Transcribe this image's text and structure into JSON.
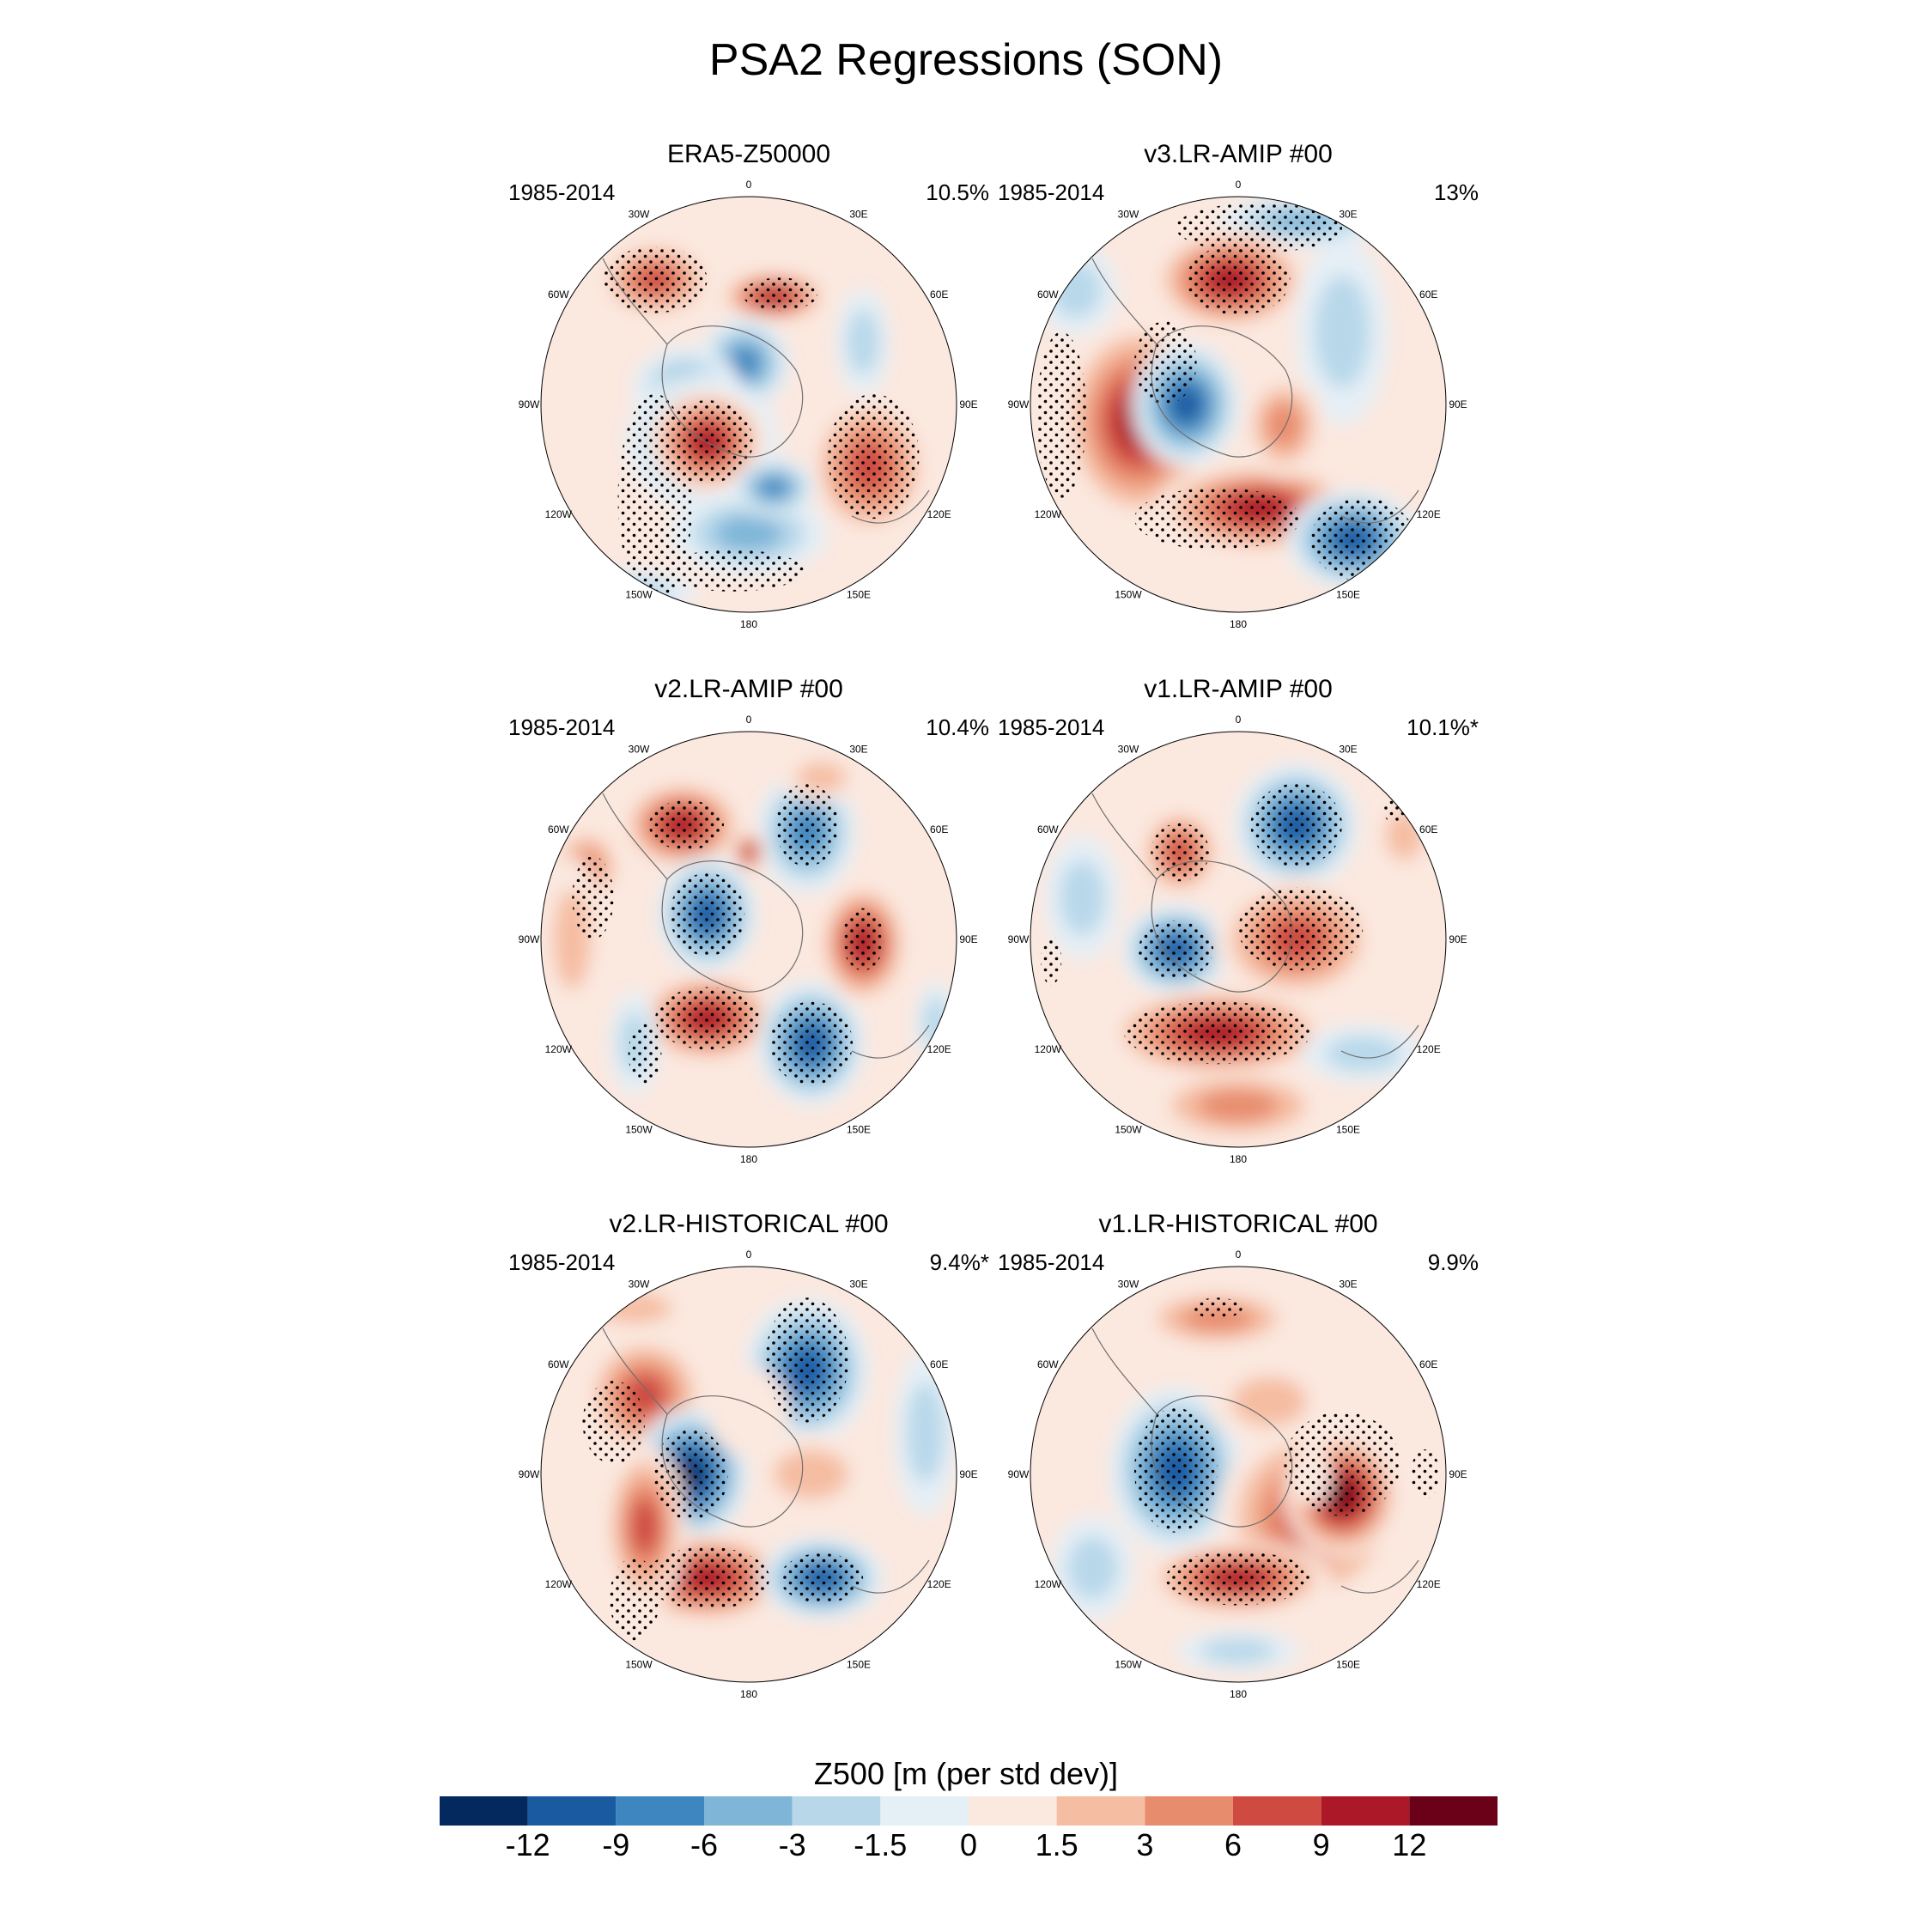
{
  "title": "PSA2 Regressions (SON)",
  "panels": [
    {
      "name": "ERA5-Z50000",
      "years": "1985-2014",
      "pct": "10.5%",
      "blobs": [
        [
          -0.45,
          -0.6,
          0.28,
          0.19,
          9
        ],
        [
          0.12,
          -0.52,
          0.27,
          0.13,
          12
        ],
        [
          -0.02,
          -0.2,
          0.22,
          0.22,
          -9
        ],
        [
          -0.3,
          -0.08,
          0.26,
          0.2,
          -6
        ],
        [
          -0.22,
          0.18,
          0.37,
          0.33,
          -9
        ],
        [
          -0.2,
          0.18,
          0.28,
          0.25,
          14
        ],
        [
          0.0,
          0.62,
          0.38,
          0.2,
          -7
        ],
        [
          0.55,
          -0.3,
          0.13,
          0.26,
          -5
        ],
        [
          0.58,
          0.3,
          0.3,
          0.35,
          10
        ],
        [
          0.12,
          0.4,
          0.2,
          0.14,
          -10
        ],
        [
          -0.55,
          0.9,
          0.3,
          0.1,
          -4
        ]
      ],
      "stipple": [
        [
          -0.45,
          -0.6,
          0.25,
          0.16
        ],
        [
          -0.45,
          0.45,
          0.18,
          0.5
        ],
        [
          -0.2,
          0.18,
          0.22,
          0.2
        ],
        [
          0.15,
          -0.53,
          0.18,
          0.08
        ],
        [
          0.6,
          0.25,
          0.22,
          0.3
        ],
        [
          -0.08,
          0.8,
          0.35,
          0.1
        ]
      ]
    },
    {
      "name": "v3.LR-AMIP  #00",
      "years": "1985-2014",
      "pct": "13%",
      "blobs": [
        [
          0.3,
          -0.88,
          0.4,
          0.12,
          -6
        ],
        [
          -0.78,
          -0.55,
          0.2,
          0.22,
          -4
        ],
        [
          -0.04,
          -0.6,
          0.38,
          0.25,
          13
        ],
        [
          0.5,
          -0.35,
          0.22,
          0.45,
          -5
        ],
        [
          -0.48,
          0.08,
          0.38,
          0.5,
          12
        ],
        [
          -0.25,
          0.0,
          0.26,
          0.3,
          -14
        ],
        [
          0.1,
          0.5,
          0.5,
          0.22,
          12
        ],
        [
          0.22,
          0.1,
          0.2,
          0.25,
          6
        ],
        [
          0.55,
          0.65,
          0.32,
          0.24,
          -13
        ],
        [
          0.92,
          0.1,
          0.1,
          0.3,
          0
        ]
      ],
      "stipple": [
        [
          0.1,
          -0.85,
          0.4,
          0.12
        ],
        [
          -0.85,
          0.05,
          0.12,
          0.4
        ],
        [
          -0.35,
          -0.2,
          0.15,
          0.2
        ],
        [
          0.0,
          -0.6,
          0.25,
          0.17
        ],
        [
          -0.1,
          0.55,
          0.4,
          0.15
        ],
        [
          0.6,
          0.65,
          0.25,
          0.2
        ]
      ]
    },
    {
      "name": "v2.LR-AMIP  #00",
      "years": "1985-2014",
      "pct": "10.4%",
      "blobs": [
        [
          -0.32,
          -0.55,
          0.3,
          0.22,
          12
        ],
        [
          0.28,
          -0.52,
          0.24,
          0.3,
          -9
        ],
        [
          -0.78,
          -0.35,
          0.18,
          0.2,
          6
        ],
        [
          -0.85,
          0.0,
          0.15,
          0.4,
          4
        ],
        [
          -0.2,
          -0.12,
          0.24,
          0.28,
          -14
        ],
        [
          -0.2,
          0.38,
          0.34,
          0.22,
          14
        ],
        [
          0.3,
          0.5,
          0.26,
          0.3,
          -13
        ],
        [
          0.55,
          0.02,
          0.22,
          0.3,
          13
        ],
        [
          0.0,
          -0.42,
          0.08,
          0.1,
          12
        ],
        [
          -0.55,
          0.5,
          0.12,
          0.25,
          -5
        ],
        [
          0.9,
          0.4,
          0.1,
          0.2,
          -3
        ],
        [
          0.35,
          -0.78,
          0.2,
          0.12,
          3
        ]
      ],
      "stipple": [
        [
          -0.75,
          -0.2,
          0.1,
          0.2
        ],
        [
          -0.3,
          -0.55,
          0.18,
          0.12
        ],
        [
          -0.2,
          -0.12,
          0.18,
          0.2
        ],
        [
          0.28,
          -0.55,
          0.15,
          0.2
        ],
        [
          -0.2,
          0.38,
          0.25,
          0.15
        ],
        [
          0.3,
          0.5,
          0.2,
          0.2
        ],
        [
          0.55,
          0.0,
          0.1,
          0.15
        ],
        [
          -0.5,
          0.55,
          0.08,
          0.15
        ]
      ]
    },
    {
      "name": "v1.LR-AMIP  #00",
      "years": "1985-2014",
      "pct": "10.1%*",
      "blobs": [
        [
          -0.28,
          -0.42,
          0.2,
          0.22,
          11
        ],
        [
          0.28,
          -0.55,
          0.3,
          0.3,
          -13
        ],
        [
          -0.3,
          0.05,
          0.26,
          0.22,
          -12
        ],
        [
          0.28,
          0.0,
          0.4,
          0.3,
          11
        ],
        [
          -0.1,
          0.45,
          0.55,
          0.22,
          13
        ],
        [
          0.6,
          0.55,
          0.3,
          0.14,
          -5
        ],
        [
          -0.75,
          -0.2,
          0.18,
          0.3,
          -3
        ],
        [
          0.0,
          0.8,
          0.45,
          0.18,
          6
        ],
        [
          0.8,
          -0.5,
          0.15,
          0.2,
          5
        ]
      ],
      "stipple": [
        [
          -0.28,
          -0.42,
          0.14,
          0.14
        ],
        [
          0.28,
          -0.55,
          0.22,
          0.2
        ],
        [
          -0.3,
          0.05,
          0.18,
          0.14
        ],
        [
          0.3,
          -0.05,
          0.3,
          0.2
        ],
        [
          -0.1,
          0.45,
          0.45,
          0.15
        ],
        [
          -0.9,
          0.1,
          0.05,
          0.12
        ],
        [
          0.75,
          -0.62,
          0.05,
          0.06
        ]
      ]
    },
    {
      "name": "v2.LR-HISTORICAL  #00",
      "years": "1985-2014",
      "pct": "9.4%*",
      "blobs": [
        [
          0.28,
          -0.5,
          0.3,
          0.35,
          -12
        ],
        [
          -0.5,
          -0.38,
          0.3,
          0.3,
          10
        ],
        [
          -0.28,
          0.0,
          0.28,
          0.32,
          -15
        ],
        [
          -0.2,
          0.5,
          0.4,
          0.22,
          14
        ],
        [
          0.35,
          0.5,
          0.3,
          0.2,
          -12
        ],
        [
          -0.5,
          0.25,
          0.2,
          0.4,
          9
        ],
        [
          0.0,
          -0.3,
          0.2,
          0.22,
          2
        ],
        [
          0.3,
          0.0,
          0.3,
          0.2,
          3
        ],
        [
          0.85,
          -0.2,
          0.15,
          0.4,
          -3
        ],
        [
          -0.55,
          -0.8,
          0.3,
          0.12,
          4
        ]
      ],
      "stipple": [
        [
          0.28,
          -0.55,
          0.2,
          0.3
        ],
        [
          -0.65,
          -0.25,
          0.15,
          0.2
        ],
        [
          -0.28,
          0.0,
          0.18,
          0.22
        ],
        [
          -0.2,
          0.5,
          0.3,
          0.15
        ],
        [
          0.35,
          0.5,
          0.2,
          0.12
        ],
        [
          -0.55,
          0.6,
          0.12,
          0.2
        ]
      ]
    },
    {
      "name": "v1.LR-HISTORICAL  #00",
      "years": "1985-2014",
      "pct": "9.9%",
      "blobs": [
        [
          -0.3,
          -0.02,
          0.32,
          0.4,
          -14
        ],
        [
          0.35,
          0.2,
          0.45,
          0.45,
          10
        ],
        [
          0.5,
          0.1,
          0.28,
          0.3,
          15
        ],
        [
          0.0,
          0.5,
          0.45,
          0.18,
          13
        ],
        [
          -0.1,
          -0.75,
          0.4,
          0.15,
          8
        ],
        [
          0.15,
          -0.35,
          0.3,
          0.2,
          5
        ],
        [
          -0.7,
          0.45,
          0.2,
          0.25,
          -3
        ],
        [
          0.0,
          0.85,
          0.3,
          0.1,
          -3
        ],
        [
          0.85,
          -0.5,
          0.12,
          0.2,
          0
        ],
        [
          0.35,
          0.0,
          0.1,
          0.15,
          0
        ]
      ],
      "stipple": [
        [
          -0.3,
          -0.02,
          0.2,
          0.3
        ],
        [
          0.5,
          -0.05,
          0.28,
          0.25
        ],
        [
          0.0,
          0.5,
          0.35,
          0.13
        ],
        [
          -0.1,
          -0.8,
          0.12,
          0.05
        ],
        [
          0.9,
          0.0,
          0.07,
          0.12
        ]
      ]
    }
  ],
  "lon_labels": [
    "0",
    "30E",
    "60E",
    "90E",
    "120E",
    "150E",
    "180",
    "150W",
    "120W",
    "90W",
    "60W",
    "30W"
  ],
  "colorbar": {
    "title": "Z500 [m (per std dev)]",
    "colors": [
      "#04295e",
      "#1a5aa1",
      "#3e86bf",
      "#7fb6d8",
      "#b8d8ea",
      "#e5eff6",
      "#fbe8df",
      "#f5bda2",
      "#e88c6e",
      "#cf4b42",
      "#ac1828",
      "#6b0019"
    ],
    "ticks": [
      "-12",
      "-9",
      "-6",
      "-3",
      "-1.5",
      "0",
      "1.5",
      "3",
      "6",
      "9",
      "12"
    ]
  }
}
